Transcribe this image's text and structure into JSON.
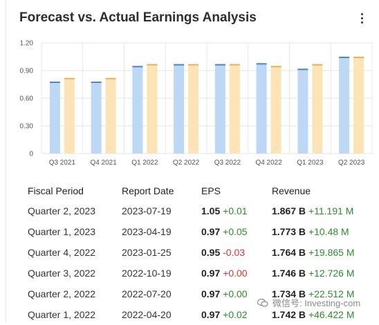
{
  "title": "Forecast vs. Actual Earnings Analysis",
  "menu_icon": "kebab-menu-icon",
  "colors": {
    "actual": "#bcd8f5",
    "actual_cap": "#4a86c8",
    "forecast": "#fde4b6",
    "forecast_cap": "#e8b258",
    "positive": "#2e8b2e",
    "negative": "#d6342e"
  },
  "chart_data": {
    "type": "bar",
    "categories": [
      "Q3 2021",
      "Q4 2021",
      "Q1 2022",
      "Q2 2022",
      "Q3 2022",
      "Q4 2022",
      "Q1 2023",
      "Q2 2023"
    ],
    "series": [
      {
        "values": [
          0.78,
          0.78,
          0.95,
          0.97,
          0.97,
          0.98,
          0.92,
          1.05
        ]
      },
      {
        "values": [
          0.82,
          0.82,
          0.97,
          0.97,
          0.97,
          0.95,
          0.97,
          1.05
        ]
      }
    ],
    "yticks": [
      "0",
      "0.30",
      "0.60",
      "0.90",
      "1.20"
    ],
    "ylim": [
      0,
      1.2
    ],
    "grid": true
  },
  "table": {
    "headers": [
      "Fiscal Period",
      "Report Date",
      "EPS",
      "Revenue"
    ],
    "rows": [
      {
        "period": "Quarter 2, 2023",
        "date": "2023-07-19",
        "eps": "1.05",
        "eps_diff": "+0.01",
        "eps_sign": "pos",
        "rev": "1.867 B",
        "rev_diff": "+11.191 M",
        "rev_sign": "pos"
      },
      {
        "period": "Quarter 1, 2023",
        "date": "2023-04-19",
        "eps": "0.97",
        "eps_diff": "+0.05",
        "eps_sign": "pos",
        "rev": "1.773 B",
        "rev_diff": "+10.48 M",
        "rev_sign": "pos"
      },
      {
        "period": "Quarter 4, 2022",
        "date": "2023-01-25",
        "eps": "0.95",
        "eps_diff": "-0.03",
        "eps_sign": "neg",
        "rev": "1.764 B",
        "rev_diff": "+19.865 M",
        "rev_sign": "pos"
      },
      {
        "period": "Quarter 3, 2022",
        "date": "2022-10-19",
        "eps": "0.97",
        "eps_diff": "+0.00",
        "eps_sign": "neg",
        "rev": "1.746 B",
        "rev_diff": "+12.726 M",
        "rev_sign": "pos"
      },
      {
        "period": "Quarter 2, 2022",
        "date": "2022-07-20",
        "eps": "0.97",
        "eps_diff": "+0.00",
        "eps_sign": "pos",
        "rev": "1.734 B",
        "rev_diff": "+22.512 M",
        "rev_sign": "pos"
      },
      {
        "period": "Quarter 1, 2022",
        "date": "2022-04-20",
        "eps": "0.97",
        "eps_diff": "+0.02",
        "eps_sign": "pos",
        "rev": "1.742 B",
        "rev_diff": "+46.422 M",
        "rev_sign": "pos"
      }
    ]
  },
  "watermark": "微信号: Investing-com"
}
